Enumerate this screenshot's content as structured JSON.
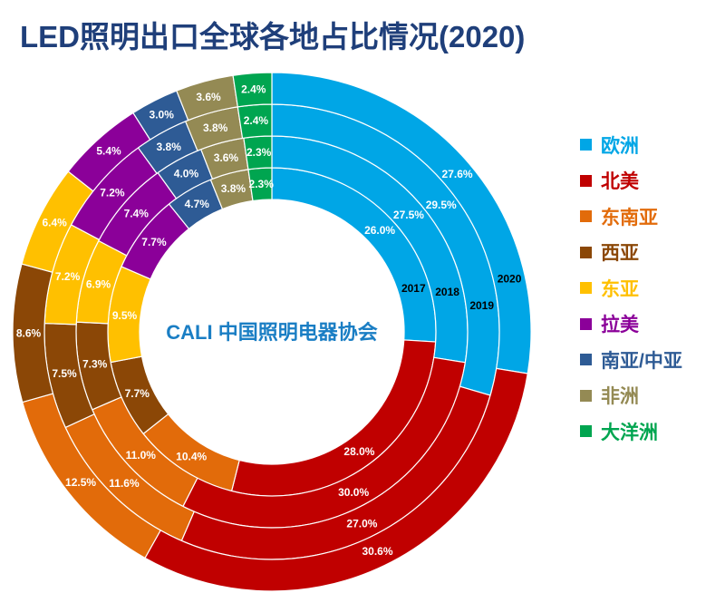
{
  "chart_data": {
    "type": "donut",
    "title": "LED照明出口全球各地占比情况(2020)",
    "categories": [
      "欧洲",
      "北美",
      "东南亚",
      "西亚",
      "东亚",
      "拉美",
      "南亚/中亚",
      "非洲",
      "大洋洲"
    ],
    "colors": [
      "#00a6e6",
      "#c00000",
      "#e26b0a",
      "#8b4706",
      "#ffc000",
      "#8b0099",
      "#2e5b95",
      "#948a54",
      "#00a550"
    ],
    "series": [
      {
        "name": "2017",
        "values": [
          26.0,
          28.0,
          10.4,
          7.7,
          9.5,
          7.7,
          4.7,
          3.8,
          2.3
        ]
      },
      {
        "name": "2018",
        "values": [
          27.5,
          30.0,
          11.0,
          7.3,
          6.9,
          7.4,
          4.0,
          3.6,
          2.3
        ]
      },
      {
        "name": "2019",
        "values": [
          29.5,
          27.0,
          11.6,
          7.5,
          7.2,
          7.2,
          3.8,
          3.8,
          2.4
        ]
      },
      {
        "name": "2020",
        "values": [
          27.6,
          30.6,
          12.5,
          8.6,
          6.4,
          5.4,
          3.0,
          3.6,
          2.4
        ]
      }
    ],
    "value_suffix": "%",
    "legend": "right"
  },
  "logo": {
    "text": "CALI 中国照明电器协会",
    "color": "#1a7ec4"
  }
}
